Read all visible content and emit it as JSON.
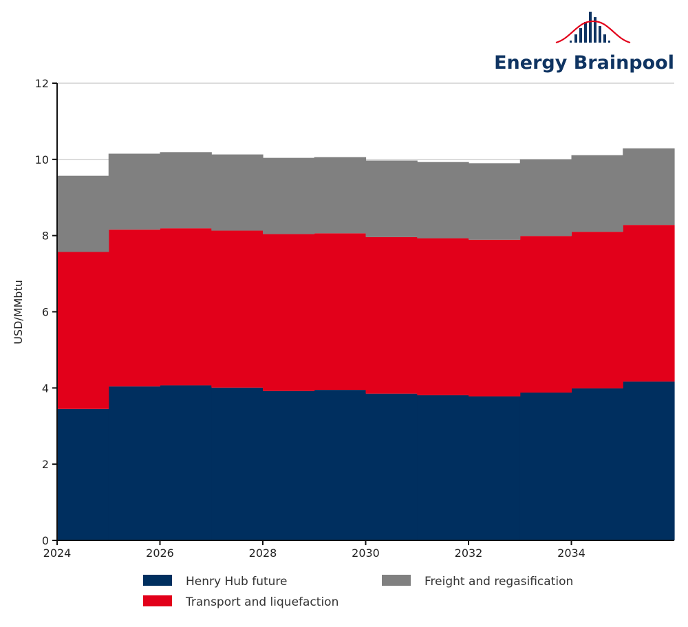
{
  "logo": {
    "text": "Energy Brainpool",
    "text_color": "#0f3462",
    "curve_color": "#e2001a"
  },
  "chart_data": {
    "type": "area",
    "subtype": "stacked-step",
    "title": "",
    "xlabel": "",
    "ylabel": "USD/MMbtu",
    "x": [
      2024,
      2025,
      2026,
      2027,
      2028,
      2029,
      2030,
      2031,
      2032,
      2033,
      2034,
      2035
    ],
    "xlim": [
      2024,
      2036
    ],
    "ylim": [
      0,
      12
    ],
    "x_ticks": [
      "2024",
      "2026",
      "2028",
      "2030",
      "2032",
      "2034"
    ],
    "x_tick_values": [
      2024,
      2026,
      2028,
      2030,
      2032,
      2034
    ],
    "y_ticks": [
      "0",
      "2",
      "4",
      "6",
      "8",
      "10",
      "12"
    ],
    "y_tick_values": [
      0,
      2,
      4,
      6,
      8,
      10,
      12
    ],
    "grid": "horizontal",
    "legend_position": "bottom",
    "series": [
      {
        "name": "Henry Hub future",
        "color": "#002f5f",
        "values": [
          3.45,
          4.04,
          4.07,
          4.01,
          3.92,
          3.95,
          3.85,
          3.81,
          3.78,
          3.88,
          3.99,
          4.17
        ]
      },
      {
        "name": "Transport and liquefaction",
        "color": "#e2001a",
        "values": [
          4.12,
          4.12,
          4.12,
          4.12,
          4.12,
          4.11,
          4.11,
          4.12,
          4.11,
          4.11,
          4.11,
          4.11
        ]
      },
      {
        "name": "Freight and regasification",
        "color": "#808080",
        "values": [
          2.0,
          1.99,
          2.0,
          2.0,
          2.0,
          2.0,
          2.01,
          2.0,
          2.01,
          2.01,
          2.01,
          2.01
        ]
      }
    ]
  }
}
